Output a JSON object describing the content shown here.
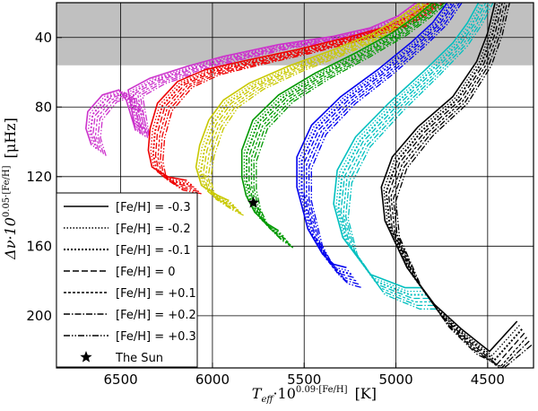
{
  "chart_data": {
    "type": "line",
    "title": "",
    "xlabel": "T_eff·10^(0.09·[Fe/H]) [K]",
    "xlabel_parts": {
      "symbol": "T",
      "sub": "eff",
      "mid": "·10",
      "sup": "0.09·[Fe/H]",
      "unit": "[K]"
    },
    "ylabel": "Δν·10^(0.05·[Fe/H]) [μHz]",
    "ylabel_parts": {
      "symbol": "Δν·10",
      "sup": "0.05·[Fe/H]",
      "unit": "[μHz]"
    },
    "xlim": [
      6850,
      4250
    ],
    "ylim": [
      230,
      20
    ],
    "xticks": [
      6500,
      6000,
      5500,
      5000,
      4500
    ],
    "yticks": [
      40,
      80,
      120,
      160,
      200
    ],
    "grid": true,
    "shaded_region": {
      "y_from": 20,
      "y_to": 56,
      "color": "#c0c0c0"
    },
    "legend": {
      "position": "lower-left",
      "entries": [
        {
          "label": "[Fe/H] = -0.3",
          "style": "solid"
        },
        {
          "label": "[Fe/H] = -0.2",
          "style": "dotted"
        },
        {
          "label": "[Fe/H] = -0.1",
          "style": "dotted-thick"
        },
        {
          "label": "[Fe/H] = 0",
          "style": "dashed"
        },
        {
          "label": "[Fe/H] = +0.1",
          "style": "short-dashed"
        },
        {
          "label": "[Fe/H] = +0.2",
          "style": "dash-dot"
        },
        {
          "label": "[Fe/H] = +0.3",
          "style": "dash-dot-dot"
        },
        {
          "label": "The Sun",
          "style": "star"
        }
      ]
    },
    "sun_point": {
      "x": 5777,
      "y": 135
    },
    "tracks": [
      {
        "color": "#cc33cc",
        "points": [
          [
            6620,
            105
          ],
          [
            6650,
            95
          ],
          [
            6640,
            85
          ],
          [
            6560,
            75
          ],
          [
            6470,
            72
          ],
          [
            6430,
            78
          ],
          [
            6380,
            96
          ],
          [
            6420,
            72
          ],
          [
            6300,
            65
          ],
          [
            6100,
            58
          ],
          [
            5900,
            52
          ],
          [
            5600,
            45
          ],
          [
            5300,
            40
          ],
          [
            5100,
            35
          ],
          [
            4950,
            28
          ],
          [
            4850,
            20
          ]
        ]
      },
      {
        "color": "#ee0000",
        "points": [
          [
            6100,
            126
          ],
          [
            6200,
            124
          ],
          [
            6290,
            118
          ],
          [
            6310,
            108
          ],
          [
            6300,
            95
          ],
          [
            6260,
            80
          ],
          [
            6150,
            67
          ],
          [
            6000,
            60
          ],
          [
            5800,
            55
          ],
          [
            5500,
            48
          ],
          [
            5200,
            40
          ],
          [
            5000,
            34
          ],
          [
            4870,
            27
          ],
          [
            4780,
            20
          ]
        ]
      },
      {
        "color": "#c8c800",
        "points": [
          [
            5870,
            138
          ],
          [
            5930,
            135
          ],
          [
            6020,
            129
          ],
          [
            6050,
            118
          ],
          [
            6030,
            105
          ],
          [
            5980,
            90
          ],
          [
            5900,
            78
          ],
          [
            5760,
            68
          ],
          [
            5550,
            58
          ],
          [
            5300,
            48
          ],
          [
            5080,
            38
          ],
          [
            4930,
            28
          ],
          [
            4830,
            20
          ]
        ]
      },
      {
        "color": "#009900",
        "points": [
          [
            5600,
            156
          ],
          [
            5660,
            152
          ],
          [
            5730,
            145
          ],
          [
            5777,
            135
          ],
          [
            5800,
            124
          ],
          [
            5800,
            108
          ],
          [
            5740,
            90
          ],
          [
            5600,
            75
          ],
          [
            5400,
            62
          ],
          [
            5180,
            50
          ],
          [
            4980,
            38
          ],
          [
            4850,
            28
          ],
          [
            4760,
            20
          ]
        ]
      },
      {
        "color": "#0000ee",
        "points": [
          [
            5230,
            178
          ],
          [
            5300,
            176
          ],
          [
            5360,
            170
          ],
          [
            5440,
            155
          ],
          [
            5500,
            130
          ],
          [
            5500,
            112
          ],
          [
            5420,
            93
          ],
          [
            5260,
            76
          ],
          [
            5060,
            60
          ],
          [
            4880,
            44
          ],
          [
            4760,
            32
          ],
          [
            4680,
            20
          ]
        ]
      },
      {
        "color": "#00bfbf",
        "points": [
          [
            4820,
            190
          ],
          [
            4910,
            190
          ],
          [
            5100,
            182
          ],
          [
            5250,
            160
          ],
          [
            5300,
            140
          ],
          [
            5280,
            120
          ],
          [
            5180,
            100
          ],
          [
            5000,
            80
          ],
          [
            4800,
            60
          ],
          [
            4650,
            44
          ],
          [
            4570,
            32
          ],
          [
            4510,
            20
          ]
        ]
      },
      {
        "color": "#000000",
        "points": [
          [
            4300,
            210
          ],
          [
            4450,
            228
          ],
          [
            4600,
            215
          ],
          [
            4750,
            200
          ],
          [
            4900,
            178
          ],
          [
            5020,
            150
          ],
          [
            5040,
            130
          ],
          [
            4980,
            112
          ],
          [
            4840,
            94
          ],
          [
            4650,
            76
          ],
          [
            4520,
            55
          ],
          [
            4460,
            38
          ],
          [
            4420,
            20
          ]
        ]
      }
    ]
  }
}
